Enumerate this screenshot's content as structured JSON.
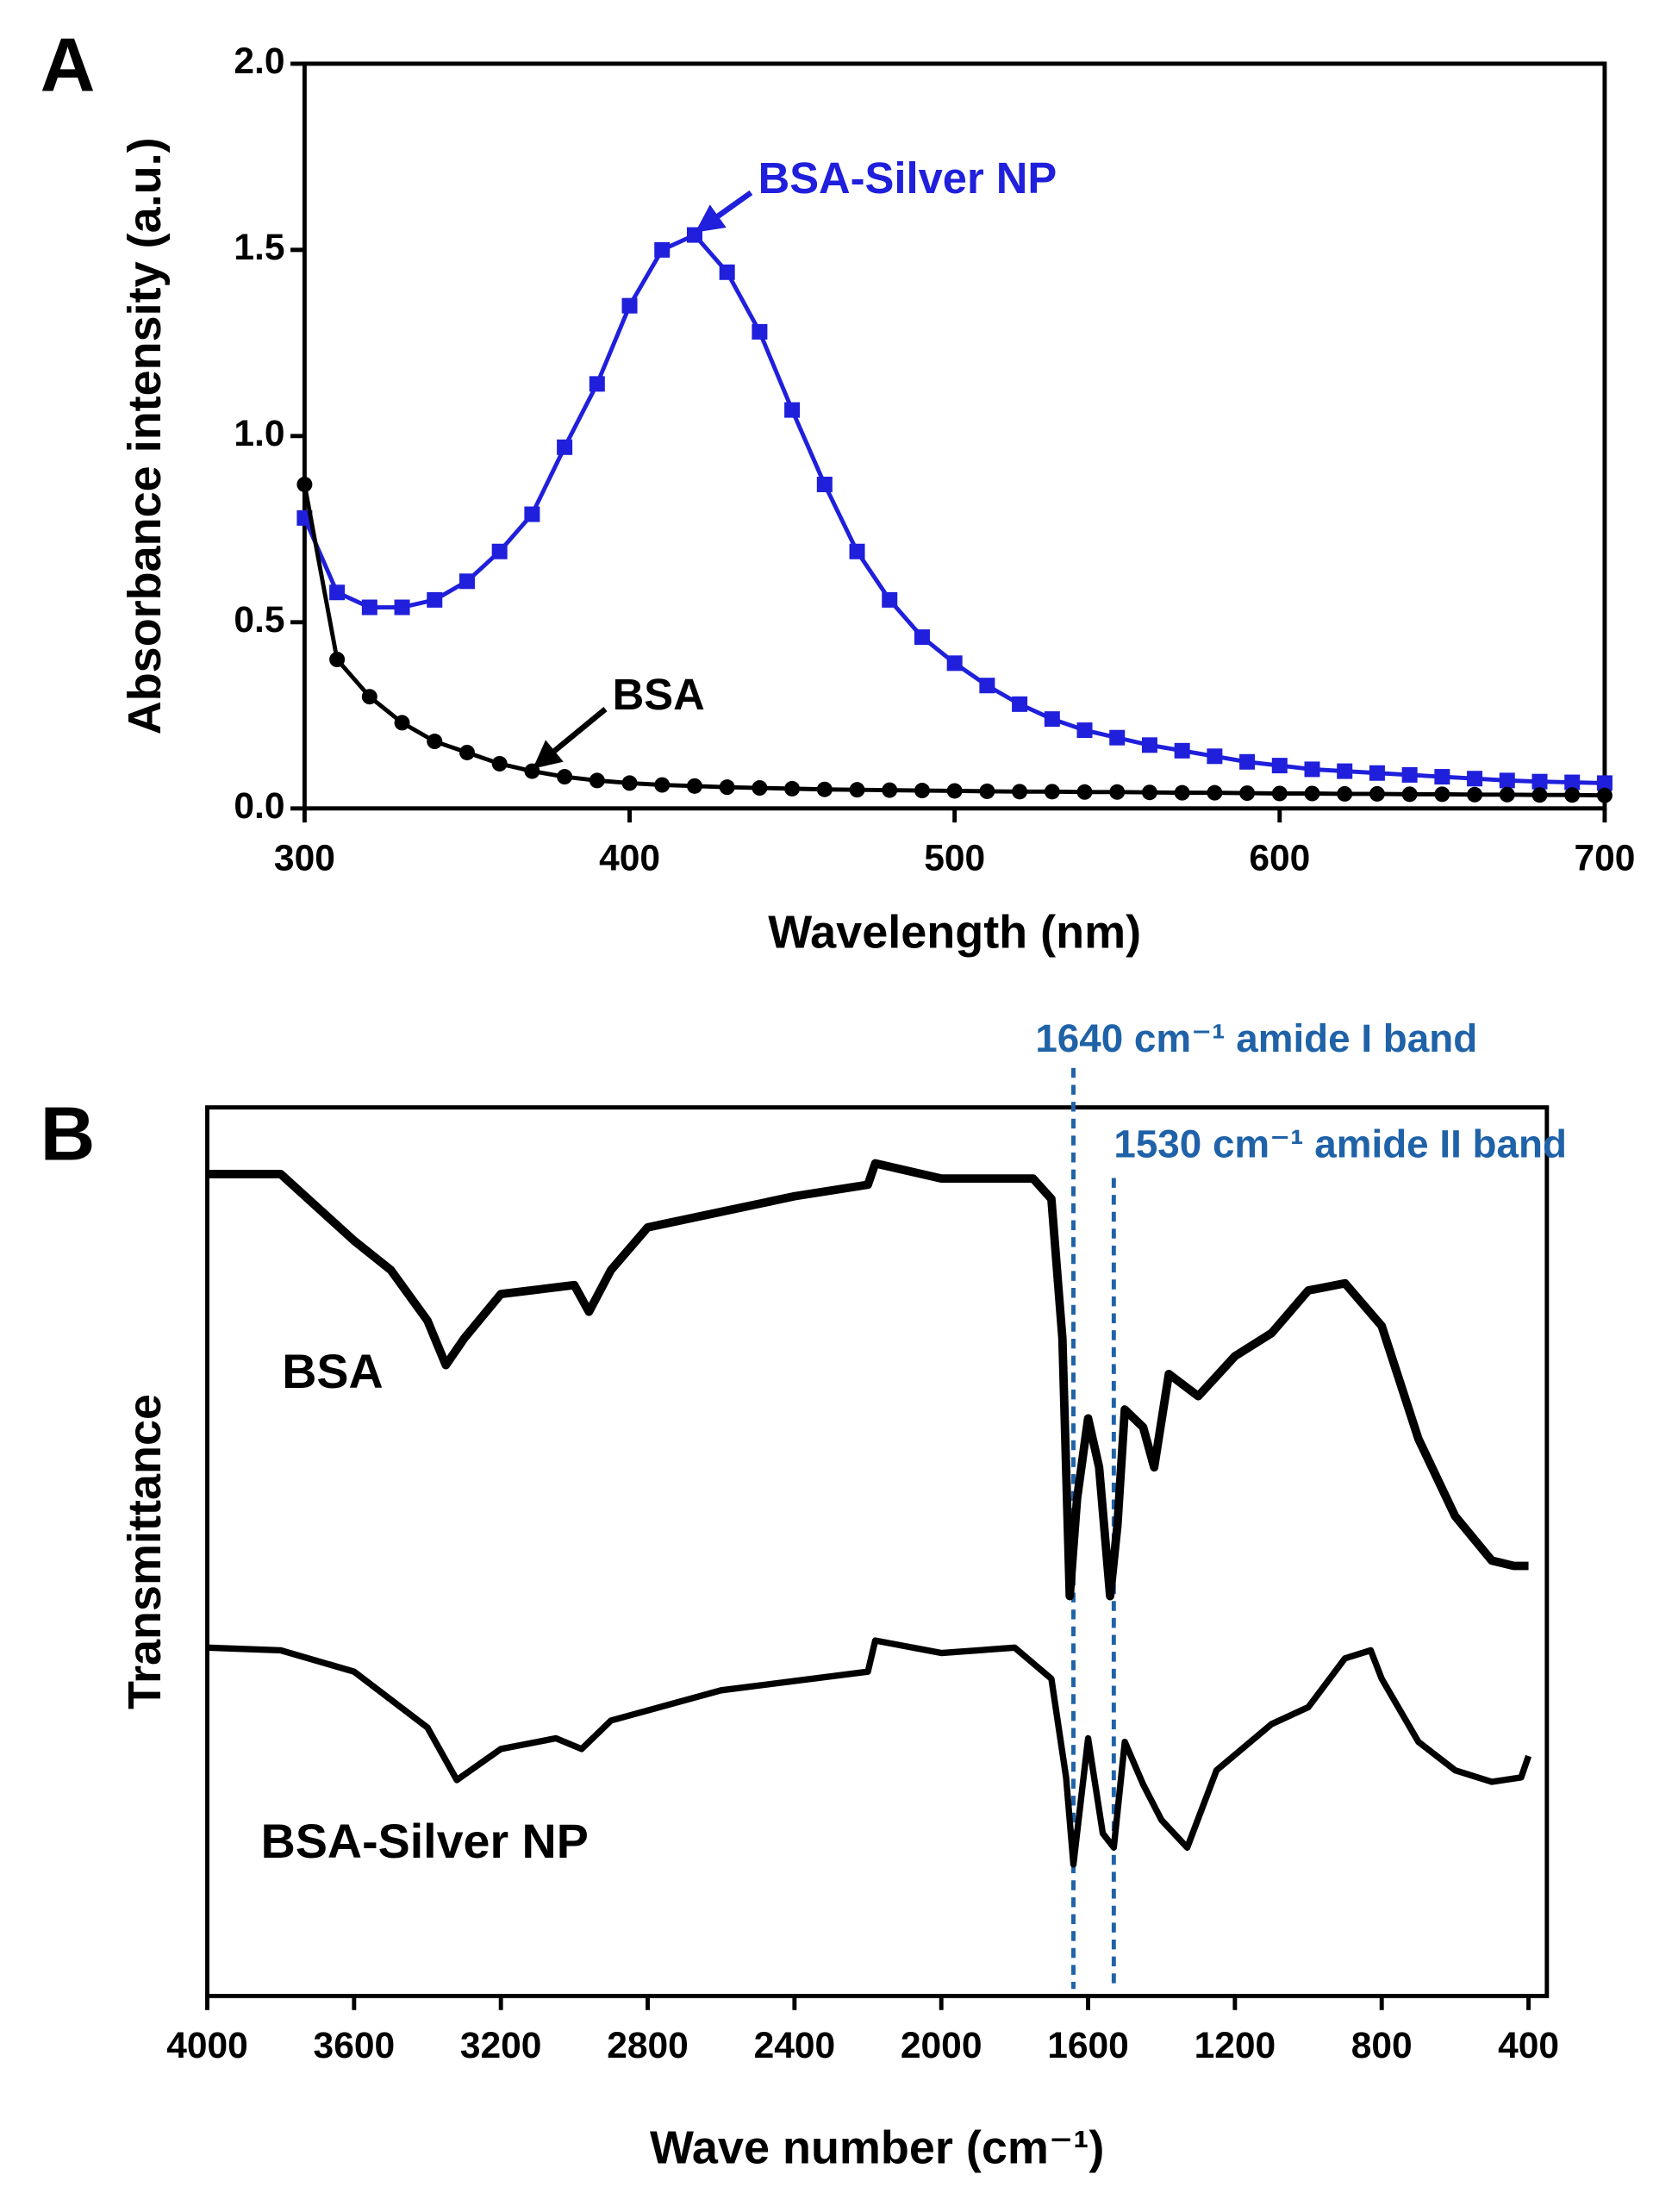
{
  "chart_data": [
    {
      "type": "line",
      "panel_label": "A",
      "x_label": "Wavelength (nm)",
      "y_label": "Absorbance intensity (a.u.)",
      "x": [
        300,
        310,
        320,
        330,
        340,
        350,
        360,
        370,
        380,
        390,
        400,
        410,
        420,
        430,
        440,
        450,
        460,
        470,
        480,
        490,
        500,
        510,
        520,
        530,
        540,
        550,
        560,
        570,
        580,
        590,
        600,
        610,
        620,
        630,
        640,
        650,
        660,
        670,
        680,
        690,
        700
      ],
      "series": [
        {
          "name": "BSA-Silver NP",
          "color": "#1f1fdc",
          "marker": "square",
          "arrow_to": {
            "x": 420,
            "y": 1.54
          },
          "values": [
            0.78,
            0.58,
            0.54,
            0.54,
            0.56,
            0.61,
            0.69,
            0.79,
            0.97,
            1.14,
            1.35,
            1.5,
            1.54,
            1.44,
            1.28,
            1.07,
            0.87,
            0.69,
            0.56,
            0.46,
            0.39,
            0.33,
            0.28,
            0.24,
            0.21,
            0.19,
            0.17,
            0.155,
            0.14,
            0.125,
            0.115,
            0.105,
            0.1,
            0.095,
            0.09,
            0.085,
            0.08,
            0.075,
            0.072,
            0.07,
            0.068
          ]
        },
        {
          "name": "BSA",
          "color": "#000000",
          "marker": "circle",
          "arrow_to": {
            "x": 370,
            "y": 0.1
          },
          "values": [
            0.87,
            0.4,
            0.3,
            0.23,
            0.18,
            0.15,
            0.12,
            0.1,
            0.085,
            0.075,
            0.068,
            0.063,
            0.06,
            0.057,
            0.055,
            0.053,
            0.051,
            0.05,
            0.049,
            0.048,
            0.047,
            0.046,
            0.045,
            0.045,
            0.044,
            0.044,
            0.043,
            0.042,
            0.042,
            0.041,
            0.04,
            0.04,
            0.039,
            0.039,
            0.038,
            0.038,
            0.037,
            0.037,
            0.036,
            0.036,
            0.035
          ]
        }
      ],
      "xlim": [
        300,
        700
      ],
      "xticks": [
        300,
        400,
        500,
        600,
        700
      ],
      "ylim": [
        0,
        2
      ],
      "yticks": [
        {
          "value": 0,
          "label": "0.0"
        },
        {
          "value": 0.5,
          "label": "0.5"
        },
        {
          "value": 1,
          "label": "1.0"
        },
        {
          "value": 1.5,
          "label": "1.5"
        },
        {
          "value": 2,
          "label": "2.0"
        }
      ]
    },
    {
      "type": "line",
      "panel_label": "B",
      "x_label": "Wave number (cm⁻¹)",
      "y_label": "Transmittance",
      "series": [
        {
          "name": "BSA",
          "color": "#000000",
          "x": [
            4000,
            3800,
            3600,
            3500,
            3400,
            3350,
            3300,
            3200,
            3100,
            3000,
            2960,
            2900,
            2800,
            2400,
            2200,
            2180,
            2000,
            1750,
            1700,
            1670,
            1650,
            1630,
            1600,
            1570,
            1540,
            1520,
            1500,
            1450,
            1420,
            1380,
            1300,
            1200,
            1100,
            1000,
            900,
            800,
            700,
            600,
            500,
            440,
            400
          ],
          "values": [
            92.5,
            92.5,
            85,
            81.7,
            76,
            71,
            74,
            79,
            79.5,
            80,
            77,
            81.7,
            86.5,
            90,
            91.3,
            93.7,
            92,
            92,
            89.7,
            74,
            45,
            56,
            65,
            59.5,
            45,
            53,
            66,
            64,
            59.5,
            70,
            67.5,
            72,
            74.6,
            79.4,
            80.2,
            75.4,
            62.7,
            54,
            49,
            48.4,
            48.4
          ]
        },
        {
          "name": "BSA-Silver NP",
          "color": "#000000",
          "x": [
            4000,
            3800,
            3600,
            3400,
            3320,
            3200,
            3050,
            2980,
            2900,
            2600,
            2200,
            2180,
            2000,
            1800,
            1700,
            1660,
            1640,
            1600,
            1560,
            1530,
            1500,
            1450,
            1400,
            1330,
            1250,
            1100,
            1000,
            900,
            830,
            800,
            700,
            600,
            500,
            420,
            400
          ],
          "values": [
            39.2,
            38.9,
            36.5,
            30.2,
            24.3,
            27.8,
            29,
            27.8,
            31,
            34.4,
            36.5,
            40,
            38.6,
            39.2,
            35.7,
            24.6,
            14.8,
            29,
            18.3,
            16.7,
            28.6,
            23.8,
            19.8,
            16.7,
            25.4,
            30.6,
            32.5,
            38,
            38.9,
            35.7,
            28.6,
            25.4,
            24.1,
            24.6,
            27
          ]
        }
      ],
      "vlines": [
        {
          "value": 1640,
          "label": "1640 cm⁻¹ amide I band",
          "color": "#1f62a8"
        },
        {
          "value": 1530,
          "label": "1530 cm⁻¹ amide II band",
          "color": "#1f62a8"
        }
      ],
      "xlim": [
        4000,
        350
      ],
      "xticks": [
        4000,
        3600,
        3200,
        2800,
        2400,
        2000,
        1600,
        1200,
        800,
        400
      ],
      "ylim": [
        0,
        100
      ]
    }
  ]
}
